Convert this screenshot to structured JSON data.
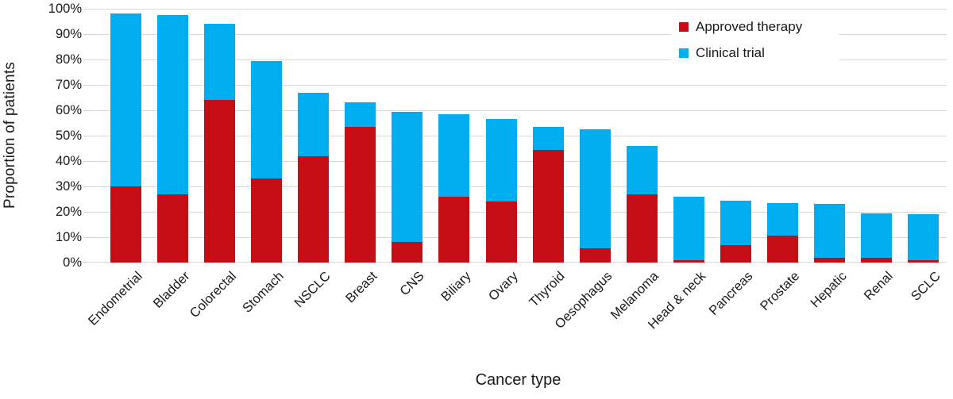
{
  "chart_data": {
    "type": "bar",
    "stacked": true,
    "title": "",
    "xlabel": "Cancer type",
    "ylabel": "Proportion of patients",
    "ylim": [
      0,
      100
    ],
    "y_tick_labels": [
      "0%",
      "10%",
      "20%",
      "30%",
      "40%",
      "50%",
      "60%",
      "70%",
      "80%",
      "90%",
      "100%"
    ],
    "grid": true,
    "legend_position": "top-right-inside",
    "categories": [
      "Endometrial",
      "Bladder",
      "Colorectal",
      "Stomach",
      "NSCLC",
      "Breast",
      "CNS",
      "Biliary",
      "Ovary",
      "Thyroid",
      "Oesophagus",
      "Melanoma",
      "Head & neck",
      "Pancreas",
      "Prostate",
      "Hepatic",
      "Renal",
      "SCLC"
    ],
    "series": [
      {
        "name": "Approved therapy",
        "color": "#c40d14",
        "values": [
          30,
          27,
          64,
          33,
          42,
          53.5,
          8,
          26,
          24,
          44.5,
          5.5,
          27,
          1,
          7,
          10.5,
          2,
          2,
          1
        ]
      },
      {
        "name": "Clinical trial",
        "color": "#00aeef",
        "values": [
          68,
          70.5,
          30,
          46.5,
          25,
          9.5,
          51.5,
          32.5,
          32.5,
          9,
          47,
          19,
          25,
          17.5,
          13,
          21,
          17.5,
          18
        ]
      }
    ],
    "stacked_totals": [
      98,
      97.5,
      94,
      79.5,
      67,
      63,
      59.5,
      58.5,
      56.5,
      53.5,
      52.5,
      46,
      26,
      24.5,
      23.5,
      23,
      19.5,
      19
    ],
    "colors": {
      "gridline": "#d9d9d9",
      "text": "#1a1a1a",
      "background": "#ffffff"
    }
  }
}
